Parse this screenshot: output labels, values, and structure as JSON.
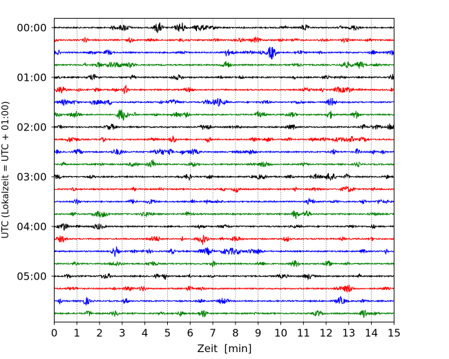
{
  "chart_data": {
    "type": "line",
    "title": "",
    "xlabel": "Zeit  [min]",
    "ylabel": "UTC (Lokalzeit = UTC + 01:00)",
    "xlim": [
      0,
      15
    ],
    "x_ticks": [
      "0",
      "1",
      "2",
      "3",
      "4",
      "5",
      "6",
      "7",
      "8",
      "9",
      "10",
      "11",
      "12",
      "13",
      "14",
      "15"
    ],
    "y_ticks": [
      "00:00",
      "01:00",
      "02:00",
      "03:00",
      "04:00",
      "05:00"
    ],
    "y_tick_rows": [
      0,
      4,
      8,
      12,
      16,
      20
    ],
    "trace_interval_min": 15,
    "trace_count": 24,
    "trace_colors": [
      "#000000",
      "#ff0000",
      "#0000ff",
      "#008000"
    ],
    "vertical_grid": true,
    "grid_style": "dotted"
  }
}
